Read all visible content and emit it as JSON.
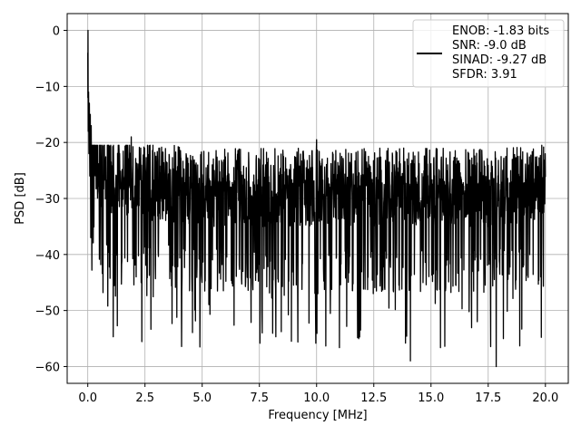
{
  "chart_data": {
    "type": "line",
    "title": "",
    "xlabel": "Frequency [MHz]",
    "ylabel": "PSD [dB]",
    "xlim": [
      -0.9,
      21.0
    ],
    "ylim": [
      -63,
      3
    ],
    "xticks": [
      0.0,
      2.5,
      5.0,
      7.5,
      10.0,
      12.5,
      15.0,
      17.5,
      20.0
    ],
    "xtick_labels": [
      "0.0",
      "2.5",
      "5.0",
      "7.5",
      "10.0",
      "12.5",
      "15.0",
      "17.5",
      "20.0"
    ],
    "yticks": [
      0,
      -10,
      -20,
      -30,
      -40,
      -50,
      -60
    ],
    "ytick_labels": [
      "0",
      "−10",
      "−20",
      "−30",
      "−40",
      "−50",
      "−60"
    ],
    "grid": true,
    "line_color": "#000000",
    "legend": {
      "placement": "top-right",
      "lines": [
        "ENOB: -1.83 bits",
        "SNR: -9.0 dB",
        "SINAD: -9.27 dB",
        "SFDR: 3.91"
      ]
    },
    "series": [
      {
        "x": [
          0.0,
          0.02,
          0.05,
          0.1,
          0.15,
          0.2,
          0.3,
          0.5,
          1.0,
          2.0,
          3.0,
          5.0,
          7.5,
          10.0,
          12.5,
          15.0,
          17.5,
          20.0
        ],
        "y": [
          -4,
          0,
          -18,
          -23,
          -26,
          -22,
          -25,
          -28,
          -29,
          -30,
          -30,
          -31,
          -31,
          -31,
          -31,
          -31,
          -31,
          -30
        ],
        "variation": "noise floor around -30 dB with fluctuations between roughly -20 and -60 dB",
        "min_points": [
          {
            "x": 14.1,
            "y": -59
          },
          {
            "x": 17.85,
            "y": -60
          },
          {
            "x": 4.9,
            "y": -56.5
          },
          {
            "x": 8.9,
            "y": -55.5
          }
        ],
        "max_points": [
          {
            "x": 10.0,
            "y": -19.5
          },
          {
            "x": 1.9,
            "y": -19
          }
        ]
      }
    ]
  }
}
